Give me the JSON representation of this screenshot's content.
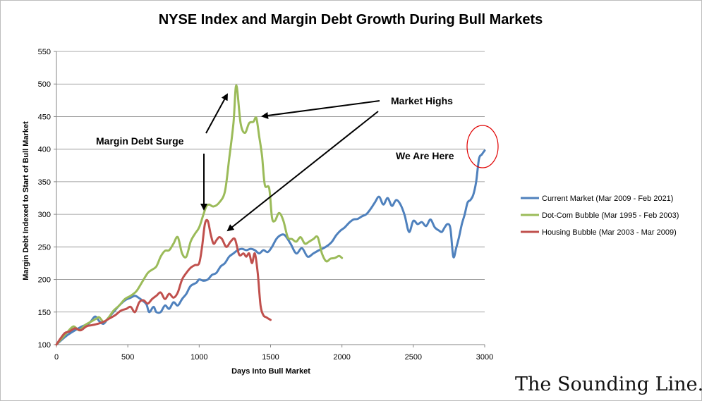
{
  "chart_data": {
    "type": "line",
    "title": "NYSE Index and Margin Debt Growth During Bull Markets",
    "xlabel": "Days Into Bull Market",
    "ylabel": "Margin Debt Indexed to Start of Bull Market",
    "xlim": [
      0,
      3000
    ],
    "ylim": [
      100,
      550
    ],
    "xticks": [
      0,
      500,
      1000,
      1500,
      2000,
      2500,
      3000
    ],
    "yticks": [
      100,
      150,
      200,
      250,
      300,
      350,
      400,
      450,
      500,
      550
    ],
    "grid": "horizontal",
    "legend": "right",
    "series": [
      {
        "name": "Current Market (Mar 2009 - Feb 2021)",
        "color": "#4f81bd",
        "x": [
          0,
          40,
          80,
          130,
          180,
          230,
          270,
          300,
          330,
          360,
          400,
          440,
          480,
          520,
          550,
          575,
          600,
          630,
          650,
          680,
          700,
          730,
          760,
          790,
          820,
          850,
          880,
          910,
          940,
          980,
          1000,
          1030,
          1060,
          1090,
          1120,
          1150,
          1180,
          1210,
          1240,
          1270,
          1300,
          1330,
          1360,
          1390,
          1420,
          1450,
          1480,
          1510,
          1540,
          1570,
          1600,
          1640,
          1680,
          1720,
          1760,
          1800,
          1840,
          1870,
          1900,
          1930,
          1960,
          1990,
          2020,
          2050,
          2080,
          2110,
          2140,
          2170,
          2200,
          2230,
          2260,
          2290,
          2320,
          2350,
          2380,
          2410,
          2440,
          2470,
          2500,
          2530,
          2560,
          2590,
          2620,
          2650,
          2680,
          2700,
          2720,
          2740,
          2760,
          2780,
          2800,
          2820,
          2840,
          2860,
          2880,
          2900,
          2920,
          2940,
          2960,
          2980,
          3000
        ],
        "values": [
          100,
          108,
          115,
          122,
          128,
          133,
          143,
          136,
          132,
          140,
          150,
          160,
          168,
          172,
          175,
          172,
          168,
          162,
          150,
          158,
          150,
          150,
          160,
          155,
          165,
          160,
          170,
          178,
          190,
          195,
          200,
          198,
          200,
          207,
          210,
          220,
          225,
          235,
          240,
          245,
          247,
          245,
          247,
          245,
          240,
          245,
          242,
          250,
          262,
          268,
          268,
          255,
          240,
          248,
          235,
          240,
          245,
          248,
          252,
          258,
          268,
          275,
          280,
          287,
          292,
          293,
          297,
          300,
          308,
          318,
          327,
          315,
          325,
          313,
          322,
          315,
          298,
          273,
          290,
          285,
          288,
          282,
          292,
          280,
          275,
          273,
          280,
          285,
          278,
          235,
          248,
          265,
          285,
          300,
          318,
          322,
          330,
          350,
          385,
          392,
          398
        ]
      },
      {
        "name": "Dot-Com Bubble (Mar 1995 - Feb 2003)",
        "color": "#9bbb59",
        "x": [
          0,
          40,
          80,
          120,
          160,
          200,
          240,
          280,
          300,
          330,
          360,
          400,
          440,
          480,
          520,
          560,
          600,
          640,
          670,
          700,
          730,
          760,
          790,
          820,
          850,
          880,
          910,
          940,
          970,
          1000,
          1030,
          1050,
          1070,
          1100,
          1140,
          1180,
          1210,
          1240,
          1260,
          1290,
          1320,
          1350,
          1380,
          1400,
          1420,
          1440,
          1460,
          1490,
          1510,
          1530,
          1560,
          1590,
          1620,
          1650,
          1680,
          1710,
          1740,
          1770,
          1800,
          1830,
          1860,
          1890,
          1920,
          1950,
          1980,
          2000
        ],
        "values": [
          100,
          110,
          120,
          128,
          122,
          130,
          135,
          140,
          142,
          135,
          140,
          152,
          160,
          170,
          175,
          182,
          196,
          210,
          215,
          220,
          235,
          244,
          245,
          255,
          265,
          240,
          235,
          258,
          270,
          280,
          300,
          312,
          315,
          312,
          318,
          335,
          385,
          440,
          498,
          440,
          425,
          440,
          442,
          448,
          420,
          390,
          345,
          340,
          295,
          290,
          302,
          290,
          265,
          262,
          258,
          265,
          255,
          258,
          262,
          265,
          240,
          228,
          232,
          233,
          236,
          233
        ]
      },
      {
        "name": "Housing Bubble (Mar 2003 - Mar 2009)",
        "color": "#c0504d",
        "x": [
          0,
          30,
          60,
          90,
          130,
          170,
          210,
          250,
          290,
          330,
          370,
          410,
          450,
          490,
          520,
          550,
          580,
          610,
          640,
          670,
          700,
          730,
          760,
          790,
          820,
          850,
          880,
          910,
          940,
          970,
          1000,
          1020,
          1040,
          1060,
          1080,
          1100,
          1120,
          1140,
          1160,
          1190,
          1220,
          1250,
          1280,
          1310,
          1330,
          1350,
          1370,
          1390,
          1410,
          1430,
          1450,
          1470,
          1500
        ],
        "values": [
          100,
          110,
          118,
          120,
          125,
          122,
          128,
          130,
          132,
          135,
          140,
          145,
          152,
          155,
          158,
          150,
          165,
          168,
          163,
          170,
          175,
          180,
          170,
          178,
          172,
          180,
          200,
          210,
          218,
          222,
          225,
          250,
          285,
          290,
          270,
          255,
          260,
          265,
          262,
          250,
          258,
          262,
          238,
          240,
          235,
          240,
          225,
          240,
          210,
          160,
          145,
          142,
          138
        ]
      }
    ],
    "annotations": {
      "margin_debt_surge": "Margin Debt Surge",
      "market_highs": "Market Highs",
      "we_are_here": "We Are Here"
    }
  },
  "watermark": "The Sounding Line.com",
  "colors": {
    "current": "#4f81bd",
    "dotcom": "#9bbb59",
    "housing": "#c0504d",
    "circle": "#e00000"
  }
}
